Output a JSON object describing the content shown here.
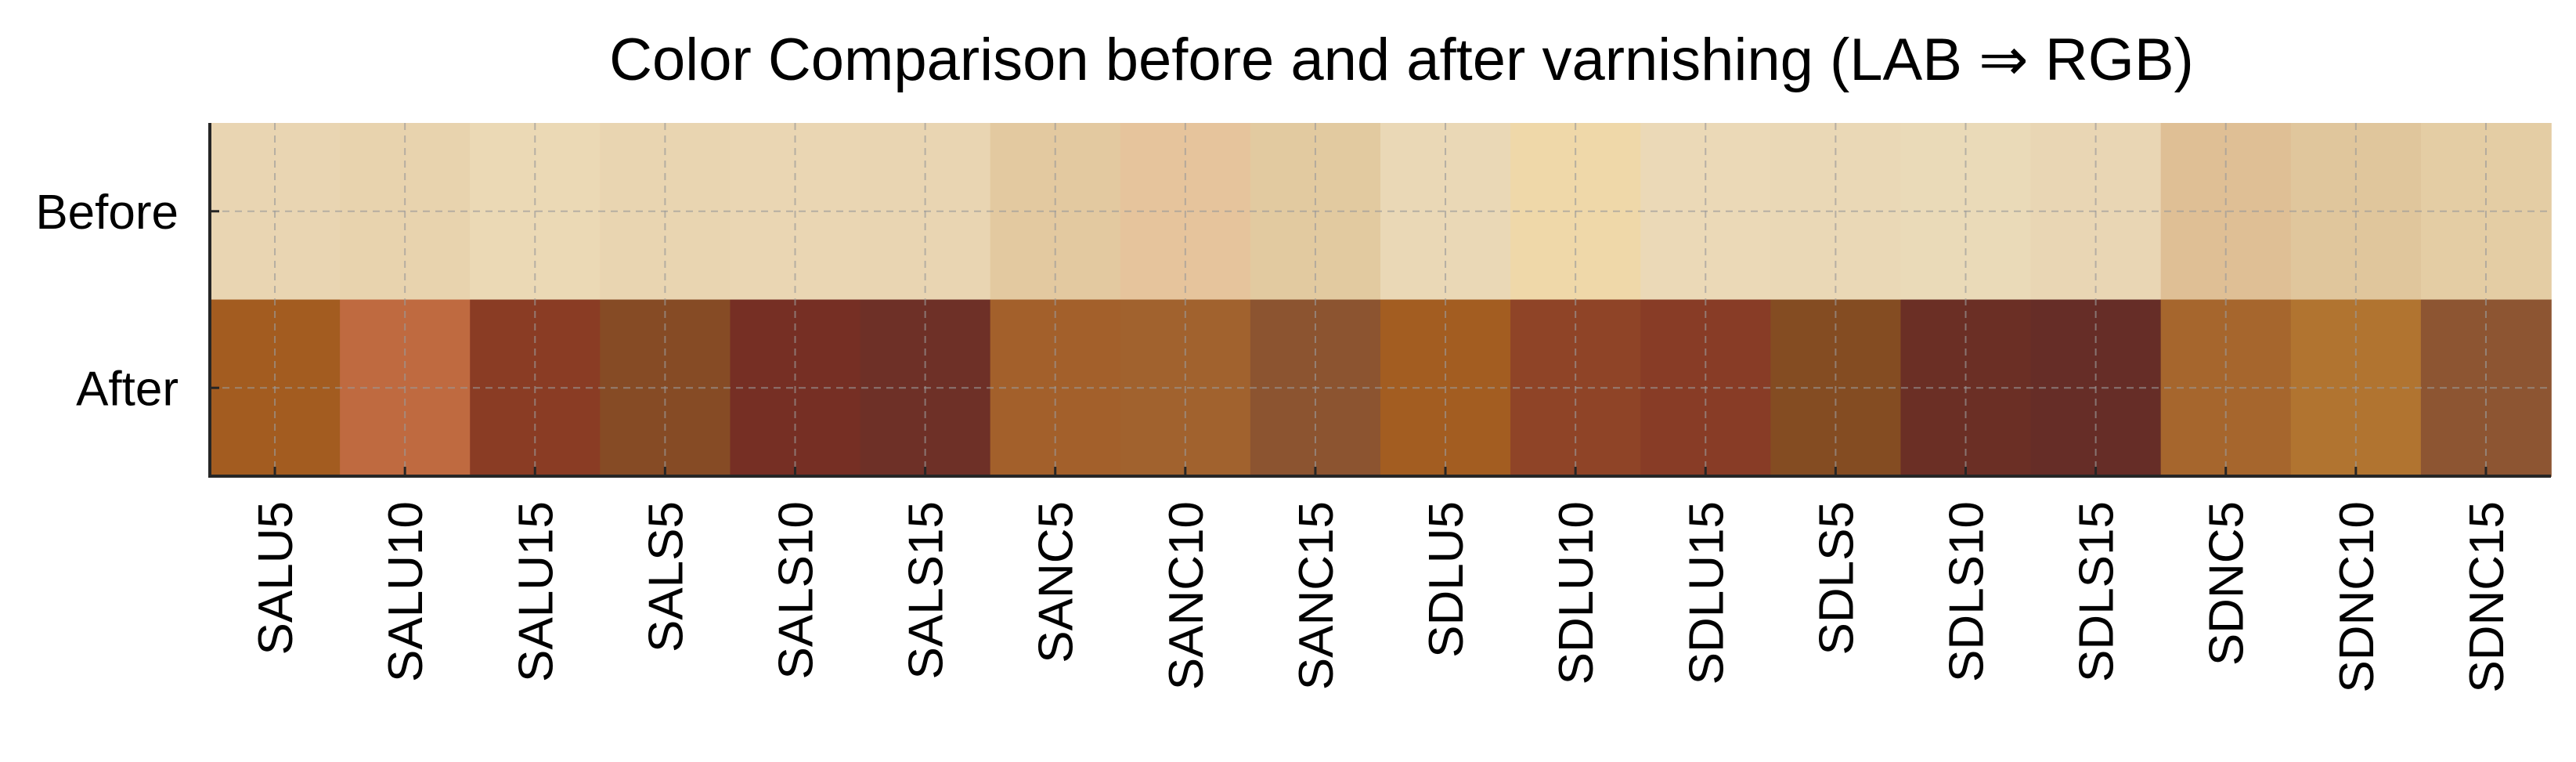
{
  "chart_data": {
    "type": "heatmap",
    "title": "Color Comparison before and after varnishing (LAB ⇒ RGB)",
    "rows": [
      "Before",
      "After"
    ],
    "categories": [
      "SALU5",
      "SALU10",
      "SALU15",
      "SALS5",
      "SALS10",
      "SALS15",
      "SANC5",
      "SANC10",
      "SANC15",
      "SDLU5",
      "SDLU10",
      "SDLU15",
      "SDLS5",
      "SDLS10",
      "SDLS15",
      "SDNC5",
      "SDNC10",
      "SDNC15"
    ],
    "colors": {
      "Before": [
        "#e9d5b2",
        "#e8d3ae",
        "#ebd9b5",
        "#e9d5b1",
        "#ead6b3",
        "#e9d5b2",
        "#e3c9a0",
        "#e6c49c",
        "#e2caa0",
        "#ead8b6",
        "#efd8a9",
        "#ebd9b7",
        "#ead8b6",
        "#eadab8",
        "#e9d6b4",
        "#dfbf95",
        "#e0c69c",
        "#e4cda4"
      ],
      "After": [
        "#a35c20",
        "#bf6a40",
        "#8a3c24",
        "#864b25",
        "#762f24",
        "#6e3027",
        "#a3602b",
        "#a1622e",
        "#8c5430",
        "#a35d21",
        "#8f4427",
        "#883c26",
        "#844c22",
        "#6b2f25",
        "#662d27",
        "#a6662d",
        "#b17430",
        "#8d5532"
      ]
    },
    "grid": true
  }
}
